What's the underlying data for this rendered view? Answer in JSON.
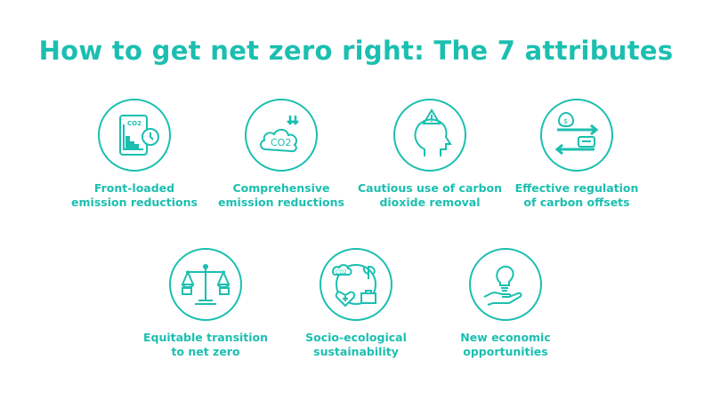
{
  "title": "How to get net zero right: The 7 attributes",
  "accent_color": "#1bbfb0",
  "attributes": [
    {
      "icon": "chart-clock-icon",
      "label_line1": "Front-loaded",
      "label_line2": "emission reductions",
      "icon_text": "CO2"
    },
    {
      "icon": "co2-cloud-icon",
      "label_line1": "Comprehensive",
      "label_line2": "emission reductions",
      "icon_text": "CO2"
    },
    {
      "icon": "head-warning-icon",
      "label_line1": "Cautious use of carbon",
      "label_line2": "dioxide removal"
    },
    {
      "icon": "money-exchange-icon",
      "label_line1": "Effective regulation",
      "label_line2": "of carbon offsets",
      "icon_text": "$"
    },
    {
      "icon": "balance-scale-icon",
      "label_line1": "Equitable transition",
      "label_line2": "to net zero"
    },
    {
      "icon": "socio-ecological-icon",
      "label_line1": "Socio-ecological",
      "label_line2": "sustainability",
      "icon_text": "CO2"
    },
    {
      "icon": "lightbulb-hand-icon",
      "label_line1": "New economic",
      "label_line2": "opportunities"
    }
  ]
}
